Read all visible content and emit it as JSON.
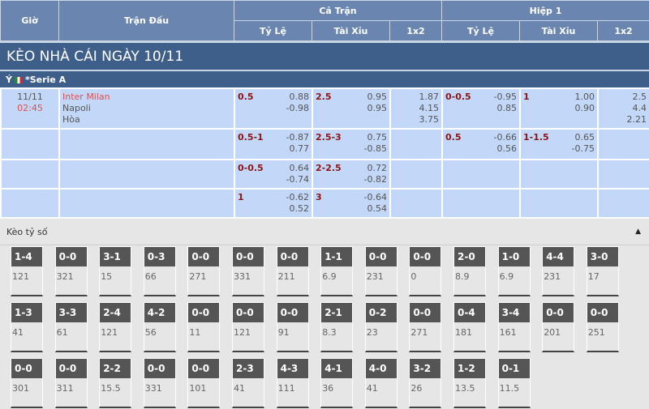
{
  "header": {
    "time": "Giờ",
    "match": "Trận Đấu",
    "full": "Cả Trận",
    "half": "Hiệp 1",
    "hdp": "Tỷ Lệ",
    "ou": "Tài Xỉu",
    "x12": "1x2"
  },
  "banner": "KÈO NHÀ CÁI NGÀY 10/11",
  "league": {
    "country": "Ý",
    "name": "*Serie A",
    "flag": "italy-flag"
  },
  "match": {
    "date": "11/11",
    "time": "02:45",
    "home": "Inter Milan",
    "away": "Napoli",
    "draw": "Hòa"
  },
  "rows": [
    {
      "hdp": [
        "0.5",
        "0.88",
        "-0.98"
      ],
      "ou": [
        "2.5",
        "0.95",
        "0.95"
      ],
      "x12": [
        "1.87",
        "4.15",
        "3.75"
      ],
      "h_hdp": [
        "0-0.5",
        "-0.95",
        "0.85"
      ],
      "h_ou": [
        "1",
        "1.00",
        "0.90"
      ],
      "h_x12": [
        "2.5",
        "4.4",
        "2.21"
      ]
    },
    {
      "hdp": [
        "0.5-1",
        "-0.87",
        "0.77"
      ],
      "ou": [
        "2.5-3",
        "0.75",
        "-0.85"
      ],
      "x12": [
        "",
        "",
        ""
      ],
      "h_hdp": [
        "0.5",
        "-0.66",
        "0.56"
      ],
      "h_ou": [
        "1-1.5",
        "0.65",
        "-0.75"
      ],
      "h_x12": [
        "",
        "",
        ""
      ]
    },
    {
      "hdp": [
        "0-0.5",
        "0.64",
        "-0.74"
      ],
      "ou": [
        "2-2.5",
        "0.72",
        "-0.82"
      ],
      "x12": [
        "",
        "",
        ""
      ],
      "h_hdp": [
        "",
        "",
        ""
      ],
      "h_ou": [
        "",
        "",
        ""
      ],
      "h_x12": [
        "",
        "",
        ""
      ]
    },
    {
      "hdp": [
        "1",
        "-0.62",
        "0.52"
      ],
      "ou": [
        "3",
        "-0.64",
        "0.54"
      ],
      "x12": [
        "",
        "",
        ""
      ],
      "h_hdp": [
        "",
        "",
        ""
      ],
      "h_ou": [
        "",
        "",
        ""
      ],
      "h_x12": [
        "",
        "",
        ""
      ]
    }
  ],
  "correct_score": {
    "title": "Kèo tỷ số",
    "tiles": [
      [
        "1-4",
        "121"
      ],
      [
        "0-0",
        "321"
      ],
      [
        "3-1",
        "15"
      ],
      [
        "0-3",
        "66"
      ],
      [
        "0-0",
        "271"
      ],
      [
        "0-0",
        "331"
      ],
      [
        "0-0",
        "211"
      ],
      [
        "1-1",
        "6.9"
      ],
      [
        "0-0",
        "231"
      ],
      [
        "0-0",
        "0"
      ],
      [
        "2-0",
        "8.9"
      ],
      [
        "1-0",
        "6.9"
      ],
      [
        "4-4",
        "231"
      ],
      [
        "3-0",
        "17"
      ],
      [
        "1-3",
        "41"
      ],
      [
        "3-3",
        "61"
      ],
      [
        "2-4",
        "121"
      ],
      [
        "4-2",
        "56"
      ],
      [
        "0-0",
        "11"
      ],
      [
        "0-0",
        "121"
      ],
      [
        "0-0",
        "91"
      ],
      [
        "2-1",
        "8.3"
      ],
      [
        "0-2",
        "23"
      ],
      [
        "0-0",
        "271"
      ],
      [
        "0-4",
        "181"
      ],
      [
        "3-4",
        "161"
      ],
      [
        "0-0",
        "201"
      ],
      [
        "0-0",
        "251"
      ],
      [
        "0-0",
        "301"
      ],
      [
        "0-0",
        "311"
      ],
      [
        "2-2",
        "15.5"
      ],
      [
        "0-0",
        "331"
      ],
      [
        "0-0",
        "101"
      ],
      [
        "2-3",
        "41"
      ],
      [
        "4-3",
        "111"
      ],
      [
        "4-1",
        "36"
      ],
      [
        "4-0",
        "41"
      ],
      [
        "3-2",
        "26"
      ],
      [
        "1-2",
        "13.5"
      ],
      [
        "0-1",
        "11.5"
      ]
    ]
  }
}
